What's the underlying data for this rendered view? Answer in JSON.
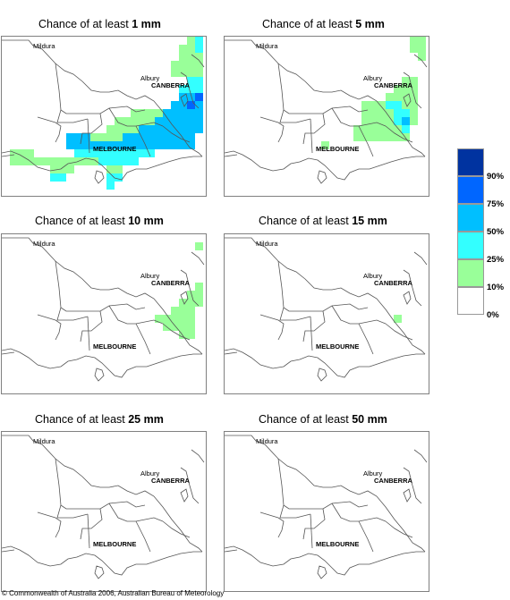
{
  "panels": [
    {
      "title_prefix": "Chance of at least ",
      "amount": "1 mm"
    },
    {
      "title_prefix": "Chance of at least ",
      "amount": "5 mm"
    },
    {
      "title_prefix": "Chance of at least ",
      "amount": "10 mm"
    },
    {
      "title_prefix": "Chance of at least ",
      "amount": "15 mm"
    },
    {
      "title_prefix": "Chance of at least ",
      "amount": "25 mm"
    },
    {
      "title_prefix": "Chance of at least ",
      "amount": "50 mm"
    }
  ],
  "places": {
    "mildura": "Mildura",
    "canberra": "CANBERRA",
    "albury": "Albury",
    "melbourne": "MELBOURNE"
  },
  "legend": {
    "labels": [
      "90%",
      "75%",
      "50%",
      "25%",
      "10%",
      "0%"
    ],
    "colors": [
      "#0033a0",
      "#0066ff",
      "#00bfff",
      "#33ffff",
      "#99ff99",
      "#ffffff"
    ]
  },
  "copyright": "© Commonwealth of Australia 2006, Australian Bureau of Meteorology"
}
